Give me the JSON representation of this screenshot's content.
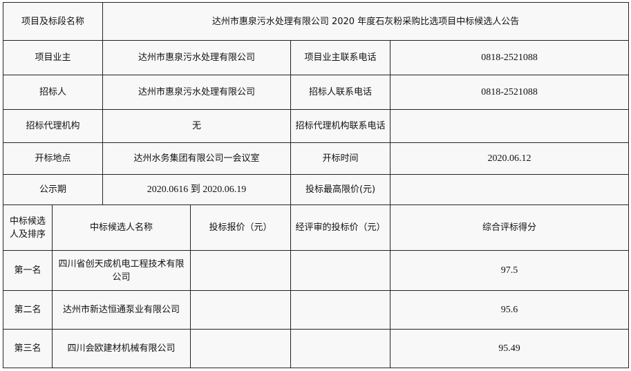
{
  "info": {
    "project_label": "项目及标段名称",
    "project_value": "达州市惠泉污水处理有限公司 2020 年度石灰粉采购比选项目中标候选人公告",
    "owner_label": "项目业主",
    "owner_value": "达州市惠泉污水处理有限公司",
    "owner_phone_label": "项目业主联系电话",
    "owner_phone_value": "0818-2521088",
    "tenderer_label": "招标人",
    "tenderer_value": "达州市惠泉污水处理有限公司",
    "tenderer_phone_label": "招标人联系电话",
    "tenderer_phone_value": "0818-2521088",
    "agency_label": "招标代理机构",
    "agency_value": "无",
    "agency_phone_label": "招标代理机构联系电话",
    "agency_phone_value": "",
    "location_label": "开标地点",
    "location_value": "达州水务集团有限公司一会议室",
    "open_time_label": "开标时间",
    "open_time_value": "2020.06.12",
    "period_label": "公示期",
    "period_value": "2020.0616 到 2020.06.19",
    "max_price_label": "投标最高限价(元)",
    "max_price_value": ""
  },
  "candidates": {
    "headers": [
      "中标候选人及排序",
      "中标候选人名称",
      "投标报价（元）",
      "经评审的投标价（元）",
      "综合评标得分"
    ],
    "rows": [
      {
        "rank": "第一名",
        "name": "四川省创天成机电工程技术有限公司",
        "bid": "",
        "reviewed": "",
        "score": "97.5"
      },
      {
        "rank": "第二名",
        "name": "达州市新达恒通泵业有限公司",
        "bid": "",
        "reviewed": "",
        "score": "95.6"
      },
      {
        "rank": "第三名",
        "name": "四川会欧建材机械有限公司",
        "bid": "",
        "reviewed": "",
        "score": "95.49"
      }
    ]
  }
}
